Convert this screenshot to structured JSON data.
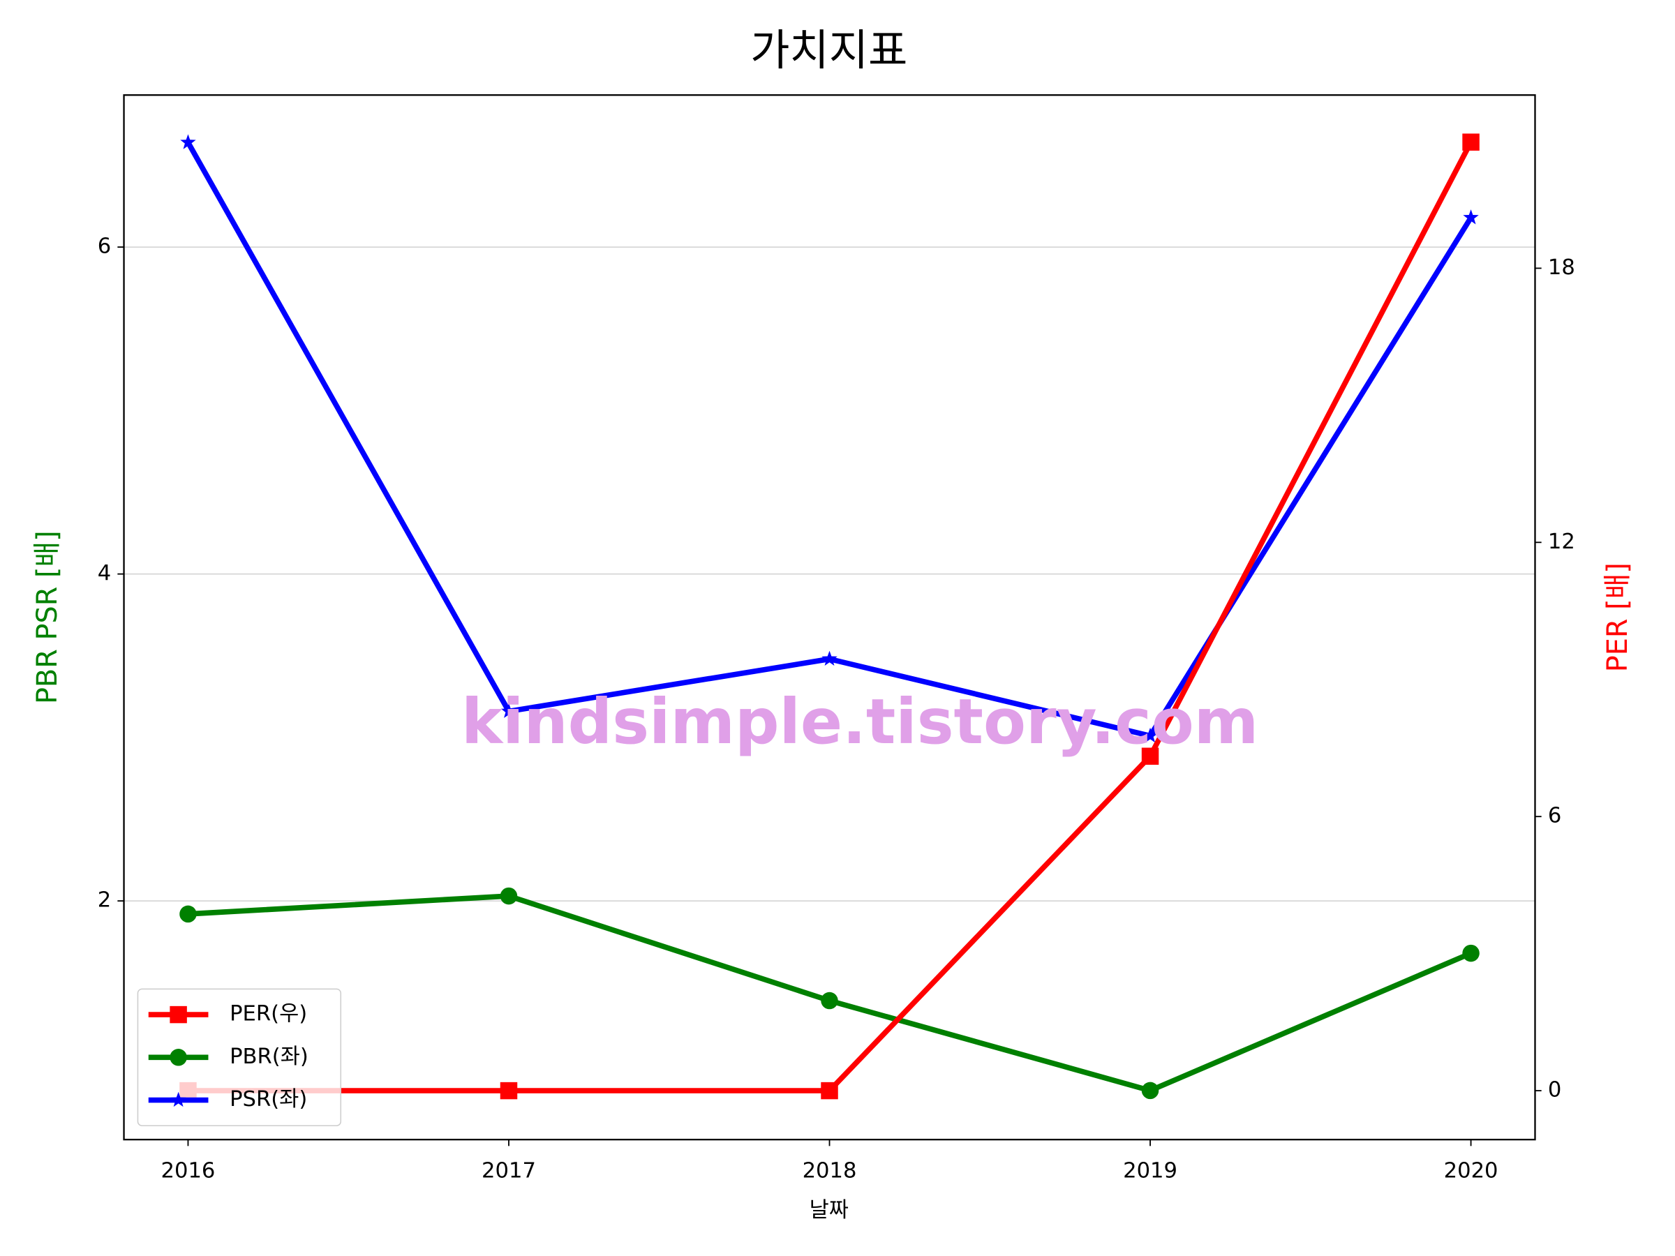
{
  "chart_data": {
    "type": "line",
    "title": "가치지표",
    "xlabel": "날짜",
    "ylabel": "PBR PSR [배]",
    "y2label": "PER [배]",
    "ylabel_color": "#008000",
    "y2label_color": "#ff0000",
    "watermark": "kindsimple.tistory.com",
    "x": [
      2016,
      2017,
      2018,
      2019,
      2020
    ],
    "xlim": [
      2015.8,
      2020.2
    ],
    "xticks": [
      2016,
      2017,
      2018,
      2019,
      2020
    ],
    "ylim": [
      0.54,
      6.93
    ],
    "yticks": [
      2,
      4,
      6
    ],
    "y2lim": [
      -1.07,
      21.79
    ],
    "y2ticks": [
      0,
      6,
      12,
      18
    ],
    "grid": "y",
    "legend": "lower left",
    "series": [
      {
        "name": "PER(우)",
        "color": "#ff0000",
        "marker": "square",
        "axis": "y2",
        "values": [
          0,
          0,
          0,
          7.32,
          20.76
        ]
      },
      {
        "name": "PBR(좌)",
        "color": "#008000",
        "marker": "circle",
        "values": [
          1.92,
          2.03,
          1.39,
          0.84,
          1.68
        ]
      },
      {
        "name": "PSR(좌)",
        "color": "#0000ff",
        "marker": "star",
        "values": [
          6.64,
          3.16,
          3.48,
          3.01,
          6.18
        ]
      }
    ]
  }
}
